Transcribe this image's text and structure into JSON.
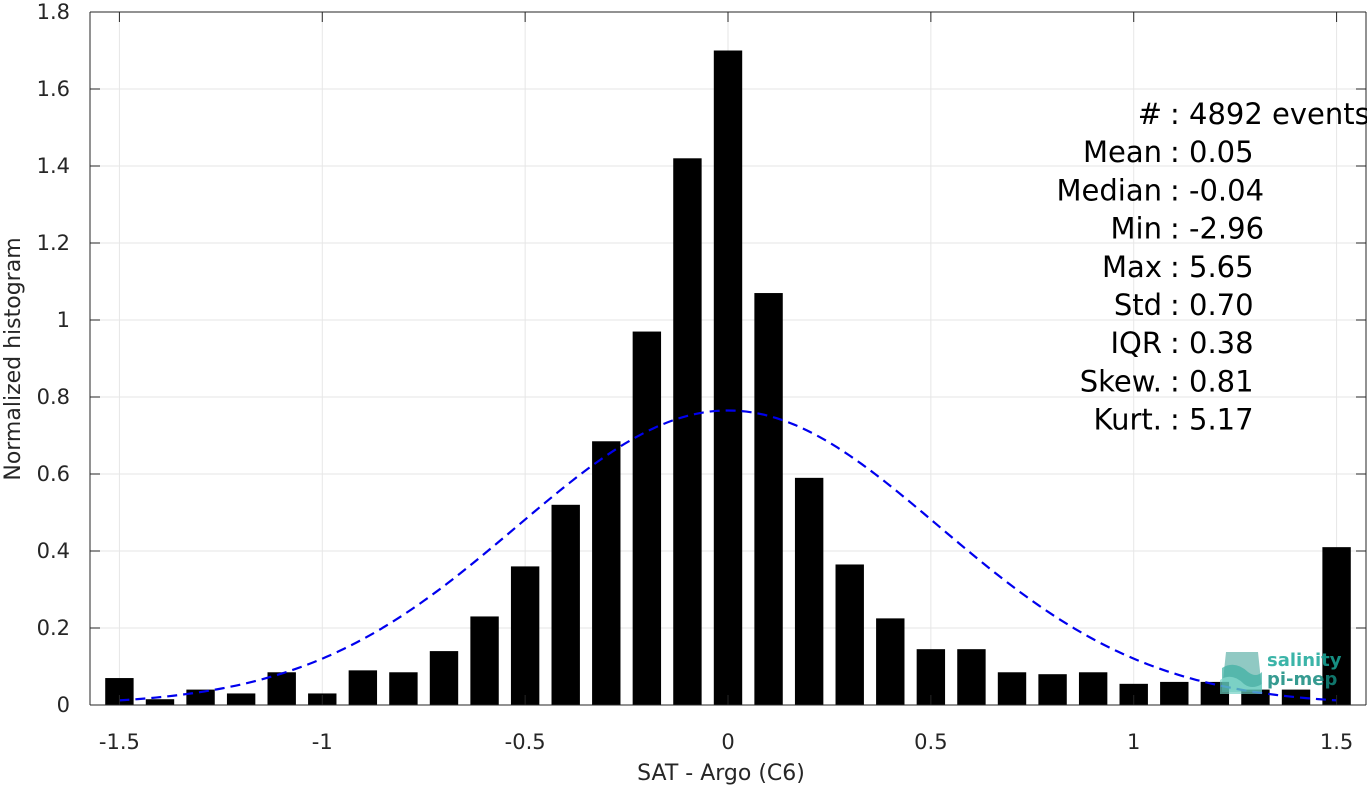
{
  "chart_data": {
    "type": "bar",
    "xlabel": "SAT - Argo (C6)",
    "ylabel": "Normalized histogram",
    "xlim": [
      -1.5725,
      1.5725
    ],
    "ylim": [
      0,
      1.8
    ],
    "xticks": [
      -1.5,
      -1,
      -0.5,
      0,
      0.5,
      1,
      1.5
    ],
    "xtick_labels": [
      "-1.5",
      "-1",
      "-0.5",
      "0",
      "0.5",
      "1",
      "1.5"
    ],
    "yticks": [
      0,
      0.2,
      0.4,
      0.6,
      0.8,
      1,
      1.2,
      1.4,
      1.6,
      1.8
    ],
    "ytick_labels": [
      "0",
      "0.2",
      "0.4",
      "0.6",
      "0.8",
      "1",
      "1.2",
      "1.4",
      "1.6",
      "1.8"
    ],
    "grid": true,
    "bar_color": "#000000",
    "bins": [
      -1.5,
      -1.4,
      -1.3,
      -1.2,
      -1.1,
      -1.0,
      -0.9,
      -0.8,
      -0.7,
      -0.6,
      -0.5,
      -0.4,
      -0.3,
      -0.2,
      -0.1,
      0.0,
      0.1,
      0.2,
      0.3,
      0.4,
      0.5,
      0.6,
      0.7,
      0.8,
      0.9,
      1.0,
      1.1,
      1.2,
      1.3,
      1.4,
      1.5
    ],
    "values": [
      0.07,
      0.015,
      0.04,
      0.03,
      0.085,
      0.03,
      0.09,
      0.085,
      0.14,
      0.23,
      0.36,
      0.52,
      0.685,
      0.97,
      1.42,
      1.7,
      1.07,
      0.59,
      0.365,
      0.225,
      0.145,
      0.145,
      0.085,
      0.08,
      0.085,
      0.055,
      0.06,
      0.06,
      0.04,
      0.04,
      0.41
    ],
    "fit_curve": {
      "type": "gaussian",
      "color": "#0000ee",
      "style": "dashed",
      "mean": 0.0,
      "std": 0.52,
      "peak": 0.765,
      "x_range": [
        -1.5,
        1.5
      ]
    },
    "annotations": [
      {
        "label": "#",
        "value": ": 4892 events"
      },
      {
        "label": "Mean",
        "value": ": 0.05"
      },
      {
        "label": "Median",
        "value": ": -0.04"
      },
      {
        "label": "Min",
        "value": ": -2.96"
      },
      {
        "label": "Max",
        "value": ": 5.65"
      },
      {
        "label": "Std",
        "value": ": 0.70"
      },
      {
        "label": "IQR",
        "value": ": 0.38"
      },
      {
        "label": "Skew.",
        "value": ": 0.81"
      },
      {
        "label": "Kurt.",
        "value": ": 5.17"
      }
    ]
  },
  "watermark": {
    "line1": "salinity",
    "line2": "pi-mep",
    "color": "#1aa89a",
    "icon": "waves-logo-icon"
  }
}
